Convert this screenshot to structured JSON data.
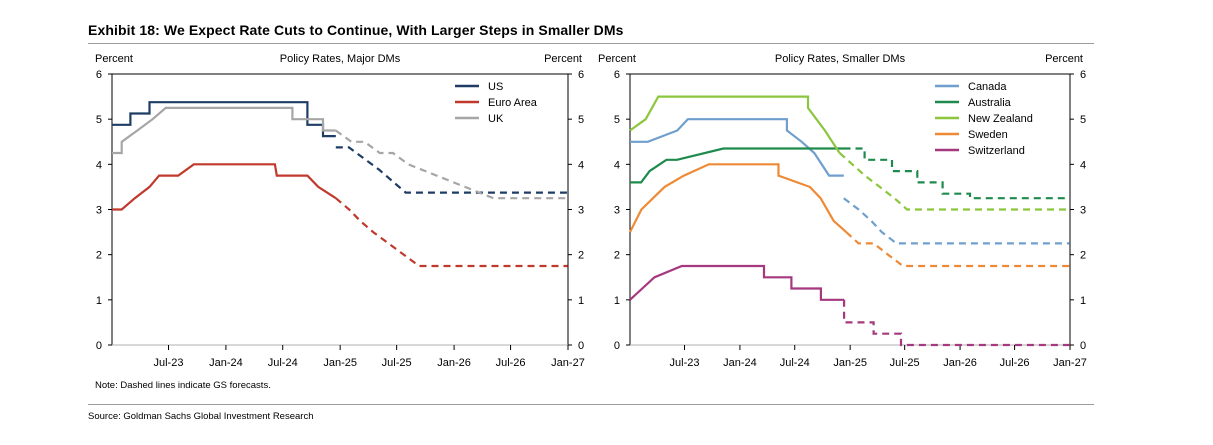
{
  "title": "Exhibit 18: We Expect Rate Cuts to Continue, With Larger Steps in Smaller DMs",
  "note": "Note: Dashed lines indicate GS forecasts.",
  "source": "Source: Goldman Sachs Global Investment Research",
  "chart_data": [
    {
      "type": "line",
      "title": "Policy Rates, Major DMs",
      "ylabel_left": "Percent",
      "ylabel_right": "Percent",
      "ylim": [
        0,
        6
      ],
      "yticks": [
        0,
        1,
        2,
        3,
        4,
        5,
        6
      ],
      "xlim": [
        "2023-01-01",
        "2027-01-01"
      ],
      "xticks": [
        {
          "label": "Jul-23",
          "date": "2023-07-01"
        },
        {
          "label": "Jan-24",
          "date": "2024-01-01"
        },
        {
          "label": "Jul-24",
          "date": "2024-07-01"
        },
        {
          "label": "Jan-25",
          "date": "2025-01-01"
        },
        {
          "label": "Jul-25",
          "date": "2025-07-01"
        },
        {
          "label": "Jan-26",
          "date": "2026-01-01"
        },
        {
          "label": "Jul-26",
          "date": "2026-07-01"
        },
        {
          "label": "Jan-27",
          "date": "2027-01-01"
        }
      ],
      "legend_position": "top-right",
      "forecast_style": "dashed",
      "series": [
        {
          "name": "US",
          "color": "#1f3d64",
          "actual": [
            [
              "2023-01-01",
              4.875
            ],
            [
              "2023-02-01",
              4.875
            ],
            [
              "2023-02-01",
              4.875
            ],
            [
              "2023-03-01",
              4.875
            ],
            [
              "2023-03-01",
              5.125
            ],
            [
              "2023-05-01",
              5.125
            ],
            [
              "2023-05-01",
              5.375
            ],
            [
              "2023-07-01",
              5.375
            ],
            [
              "2023-07-01",
              5.375
            ],
            [
              "2024-09-18",
              5.375
            ],
            [
              "2024-09-18",
              4.875
            ],
            [
              "2024-11-07",
              4.875
            ],
            [
              "2024-11-07",
              4.625
            ],
            [
              "2024-12-18",
              4.625
            ]
          ],
          "forecast": [
            [
              "2024-12-18",
              4.375
            ],
            [
              "2025-01-29",
              4.375
            ],
            [
              "2025-03-19",
              4.125
            ],
            [
              "2025-05-07",
              3.875
            ],
            [
              "2025-06-18",
              3.625
            ],
            [
              "2025-07-30",
              3.375
            ],
            [
              "2026-12-31",
              3.375
            ]
          ]
        },
        {
          "name": "Euro Area",
          "color": "#c0392b",
          "actual": [
            [
              "2023-01-01",
              3.0
            ],
            [
              "2023-02-01",
              3.0
            ],
            [
              "2023-03-15",
              3.25
            ],
            [
              "2023-05-01",
              3.5
            ],
            [
              "2023-06-01",
              3.75
            ],
            [
              "2023-08-01",
              3.75
            ],
            [
              "2023-09-20",
              4.0
            ],
            [
              "2024-06-06",
              4.0
            ],
            [
              "2024-06-12",
              3.75
            ],
            [
              "2024-09-18",
              3.75
            ],
            [
              "2024-10-23",
              3.5
            ],
            [
              "2024-12-18",
              3.25
            ]
          ],
          "forecast": [
            [
              "2024-12-18",
              3.25
            ],
            [
              "2025-01-30",
              3.0
            ],
            [
              "2025-03-06",
              2.75
            ],
            [
              "2025-04-17",
              2.5
            ],
            [
              "2025-06-05",
              2.25
            ],
            [
              "2025-07-24",
              2.0
            ],
            [
              "2025-09-11",
              1.75
            ],
            [
              "2026-12-31",
              1.75
            ]
          ]
        },
        {
          "name": "UK",
          "color": "#a6a6a6",
          "actual": [
            [
              "2023-01-01",
              4.25
            ],
            [
              "2023-02-01",
              4.25
            ],
            [
              "2023-02-01",
              4.5
            ],
            [
              "2023-03-23",
              4.75
            ],
            [
              "2023-05-11",
              5.0
            ],
            [
              "2023-06-22",
              5.25
            ],
            [
              "2023-08-03",
              5.25
            ],
            [
              "2024-08-01",
              5.25
            ],
            [
              "2024-08-01",
              5.0
            ],
            [
              "2024-11-07",
              5.0
            ],
            [
              "2024-11-07",
              4.75
            ],
            [
              "2024-12-18",
              4.75
            ]
          ],
          "forecast": [
            [
              "2024-12-18",
              4.75
            ],
            [
              "2025-02-06",
              4.5
            ],
            [
              "2025-03-20",
              4.5
            ],
            [
              "2025-05-08",
              4.25
            ],
            [
              "2025-06-19",
              4.25
            ],
            [
              "2025-08-07",
              4.0
            ],
            [
              "2025-11-06",
              3.75
            ],
            [
              "2026-02-05",
              3.5
            ],
            [
              "2026-05-07",
              3.25
            ],
            [
              "2026-12-31",
              3.25
            ]
          ]
        }
      ]
    },
    {
      "type": "line",
      "title": "Policy Rates, Smaller DMs",
      "ylabel_left": "Percent",
      "ylabel_right": "Percent",
      "ylim": [
        0,
        6
      ],
      "yticks": [
        0,
        1,
        2,
        3,
        4,
        5,
        6
      ],
      "xlim": [
        "2023-01-01",
        "2027-01-01"
      ],
      "xticks": [
        {
          "label": "Jul-23",
          "date": "2023-07-01"
        },
        {
          "label": "Jan-24",
          "date": "2024-01-01"
        },
        {
          "label": "Jul-24",
          "date": "2024-07-01"
        },
        {
          "label": "Jan-25",
          "date": "2025-01-01"
        },
        {
          "label": "Jul-25",
          "date": "2025-07-01"
        },
        {
          "label": "Jan-26",
          "date": "2026-01-01"
        },
        {
          "label": "Jul-26",
          "date": "2026-07-01"
        },
        {
          "label": "Jan-27",
          "date": "2027-01-01"
        }
      ],
      "legend_position": "top-right",
      "forecast_style": "dashed",
      "series": [
        {
          "name": "Canada",
          "color": "#6f9fcd",
          "actual": [
            [
              "2023-01-01",
              4.5
            ],
            [
              "2023-03-01",
              4.5
            ],
            [
              "2023-06-07",
              4.75
            ],
            [
              "2023-07-12",
              5.0
            ],
            [
              "2024-06-05",
              5.0
            ],
            [
              "2024-06-05",
              4.75
            ],
            [
              "2024-07-24",
              4.5
            ],
            [
              "2024-09-04",
              4.25
            ],
            [
              "2024-10-23",
              3.75
            ],
            [
              "2024-12-11",
              3.75
            ]
          ],
          "forecast": [
            [
              "2024-12-11",
              3.25
            ],
            [
              "2025-01-29",
              3.0
            ],
            [
              "2025-03-12",
              2.75
            ],
            [
              "2025-04-16",
              2.5
            ],
            [
              "2025-06-04",
              2.25
            ],
            [
              "2026-12-31",
              2.25
            ]
          ]
        },
        {
          "name": "Australia",
          "color": "#1e8a4c",
          "actual": [
            [
              "2023-01-01",
              3.6
            ],
            [
              "2023-02-07",
              3.6
            ],
            [
              "2023-03-07",
              3.85
            ],
            [
              "2023-05-02",
              4.1
            ],
            [
              "2023-06-06",
              4.1
            ],
            [
              "2023-11-07",
              4.35
            ],
            [
              "2024-12-10",
              4.35
            ]
          ],
          "forecast": [
            [
              "2024-12-10",
              4.35
            ],
            [
              "2025-02-18",
              4.35
            ],
            [
              "2025-02-18",
              4.1
            ],
            [
              "2025-05-20",
              4.1
            ],
            [
              "2025-05-20",
              3.85
            ],
            [
              "2025-08-12",
              3.85
            ],
            [
              "2025-08-12",
              3.6
            ],
            [
              "2025-11-04",
              3.6
            ],
            [
              "2025-11-04",
              3.35
            ],
            [
              "2026-02-03",
              3.35
            ],
            [
              "2026-02-03",
              3.25
            ],
            [
              "2026-12-31",
              3.25
            ]
          ]
        },
        {
          "name": "New Zealand",
          "color": "#8cc63f",
          "actual": [
            [
              "2023-01-01",
              4.75
            ],
            [
              "2023-02-22",
              5.0
            ],
            [
              "2023-04-05",
              5.5
            ],
            [
              "2023-05-24",
              5.5
            ],
            [
              "2024-08-14",
              5.5
            ],
            [
              "2024-08-14",
              5.25
            ],
            [
              "2024-10-09",
              4.75
            ],
            [
              "2024-11-27",
              4.25
            ]
          ],
          "forecast": [
            [
              "2024-11-27",
              4.25
            ],
            [
              "2025-02-19",
              3.75
            ],
            [
              "2025-04-09",
              3.5
            ],
            [
              "2025-05-28",
              3.25
            ],
            [
              "2025-07-09",
              3.0
            ],
            [
              "2026-12-31",
              3.0
            ]
          ]
        },
        {
          "name": "Sweden",
          "color": "#ee8a35",
          "actual": [
            [
              "2023-01-01",
              2.5
            ],
            [
              "2023-02-08",
              3.0
            ],
            [
              "2023-04-26",
              3.5
            ],
            [
              "2023-06-29",
              3.75
            ],
            [
              "2023-09-20",
              4.0
            ],
            [
              "2024-05-08",
              4.0
            ],
            [
              "2024-05-08",
              3.75
            ],
            [
              "2024-08-20",
              3.5
            ],
            [
              "2024-09-25",
              3.25
            ],
            [
              "2024-11-07",
              2.75
            ],
            [
              "2024-12-19",
              2.5
            ]
          ],
          "forecast": [
            [
              "2024-12-19",
              2.5
            ],
            [
              "2025-01-29",
              2.25
            ],
            [
              "2025-03-20",
              2.25
            ],
            [
              "2025-05-07",
              2.0
            ],
            [
              "2025-06-25",
              1.75
            ],
            [
              "2026-12-31",
              1.75
            ]
          ]
        },
        {
          "name": "Switzerland",
          "color": "#a5387e",
          "actual": [
            [
              "2023-01-01",
              1.0
            ],
            [
              "2023-03-23",
              1.5
            ],
            [
              "2023-06-22",
              1.75
            ],
            [
              "2024-03-21",
              1.75
            ],
            [
              "2024-03-21",
              1.5
            ],
            [
              "2024-06-20",
              1.5
            ],
            [
              "2024-06-20",
              1.25
            ],
            [
              "2024-09-26",
              1.25
            ],
            [
              "2024-09-26",
              1.0
            ],
            [
              "2024-12-12",
              1.0
            ]
          ],
          "forecast": [
            [
              "2024-12-12",
              1.0
            ],
            [
              "2024-12-12",
              0.5
            ],
            [
              "2025-03-20",
              0.5
            ],
            [
              "2025-03-20",
              0.25
            ],
            [
              "2025-06-19",
              0.25
            ],
            [
              "2025-06-19",
              0.0
            ],
            [
              "2026-12-31",
              0.0
            ]
          ]
        }
      ]
    }
  ]
}
